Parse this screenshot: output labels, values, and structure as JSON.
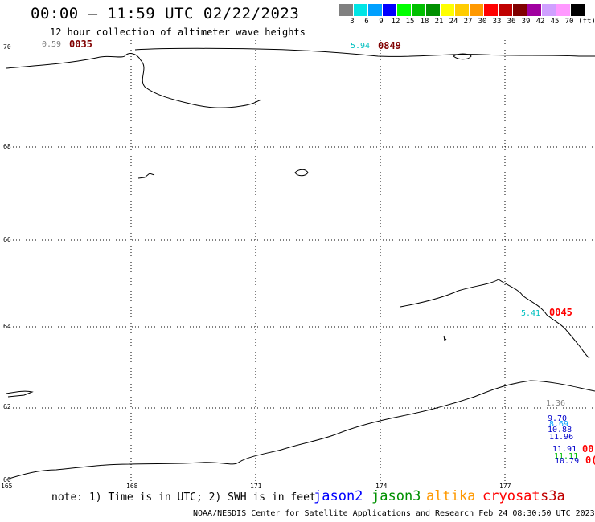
{
  "header": {
    "title": "00:00 – 11:59 UTC 02/22/2023",
    "subtitle": "12 hour collection of altimeter wave heights"
  },
  "legend": {
    "unit": "(ft)",
    "items": [
      {
        "color": "#808080",
        "label": ""
      },
      {
        "color": "#00e5e5",
        "label": "3"
      },
      {
        "color": "#00a0ff",
        "label": "6"
      },
      {
        "color": "#0000ff",
        "label": "9"
      },
      {
        "color": "#00ff00",
        "label": "12"
      },
      {
        "color": "#00c000",
        "label": "15"
      },
      {
        "color": "#009000",
        "label": "18"
      },
      {
        "color": "#ffff00",
        "label": "21"
      },
      {
        "color": "#ffcc00",
        "label": "24"
      },
      {
        "color": "#ff9900",
        "label": "27"
      },
      {
        "color": "#ff0000",
        "label": "30"
      },
      {
        "color": "#c00000",
        "label": "33"
      },
      {
        "color": "#800000",
        "label": "36"
      },
      {
        "color": "#a000a0",
        "label": "39"
      },
      {
        "color": "#d0a0ff",
        "label": "42"
      },
      {
        "color": "#ff99ff",
        "label": "45"
      },
      {
        "color": "#000000",
        "label": "70"
      }
    ]
  },
  "map": {
    "lat_labels": [
      "70",
      "68",
      "66",
      "64",
      "62",
      "60"
    ],
    "lon_labels": [
      "165",
      "168",
      "171",
      "174",
      "177"
    ]
  },
  "passes": [
    {
      "text": "0.59",
      "color": "#808080",
      "kind": "value"
    },
    {
      "text": "0035",
      "color": "#800000",
      "kind": "time"
    },
    {
      "text": "5.94",
      "color": "#00c0c0",
      "kind": "value"
    },
    {
      "text": "0849",
      "color": "#800000",
      "kind": "time"
    },
    {
      "text": "5.41",
      "color": "#00c0c0",
      "kind": "value"
    },
    {
      "text": "0045",
      "color": "#ff0000",
      "kind": "time"
    },
    {
      "text": "1.36",
      "color": "#808080",
      "kind": "value"
    },
    {
      "text": "9.70",
      "color": "#0000cc",
      "kind": "value"
    },
    {
      "text": "8.69",
      "color": "#00a0ff",
      "kind": "value"
    },
    {
      "text": "10.88",
      "color": "#0000cc",
      "kind": "value"
    },
    {
      "text": "11.96",
      "color": "#0000cc",
      "kind": "value"
    },
    {
      "text": "11.91",
      "color": "#0000cc",
      "kind": "value"
    },
    {
      "text": "00",
      "color": "#ff0000",
      "kind": "time"
    },
    {
      "text": "11.11",
      "color": "#00c000",
      "kind": "value"
    },
    {
      "text": "10.79",
      "color": "#0000cc",
      "kind": "value"
    },
    {
      "text": "0(",
      "color": "#ff0000",
      "kind": "time"
    }
  ],
  "footer": {
    "note": "note: 1) Time is in UTC; 2) SWH is in feet",
    "satellites": [
      {
        "name": "jason2",
        "color": "#0000ff"
      },
      {
        "name": "jason3",
        "color": "#009000"
      },
      {
        "name": "altika",
        "color": "#ff9900"
      },
      {
        "name": "cryosat",
        "color": "#ff0000"
      },
      {
        "name": "s3a",
        "color": "#c00000"
      }
    ],
    "credit": "NOAA/NESDIS Center for Satellite Applications and Research    Feb 24 08:30:50 UTC 2023"
  }
}
